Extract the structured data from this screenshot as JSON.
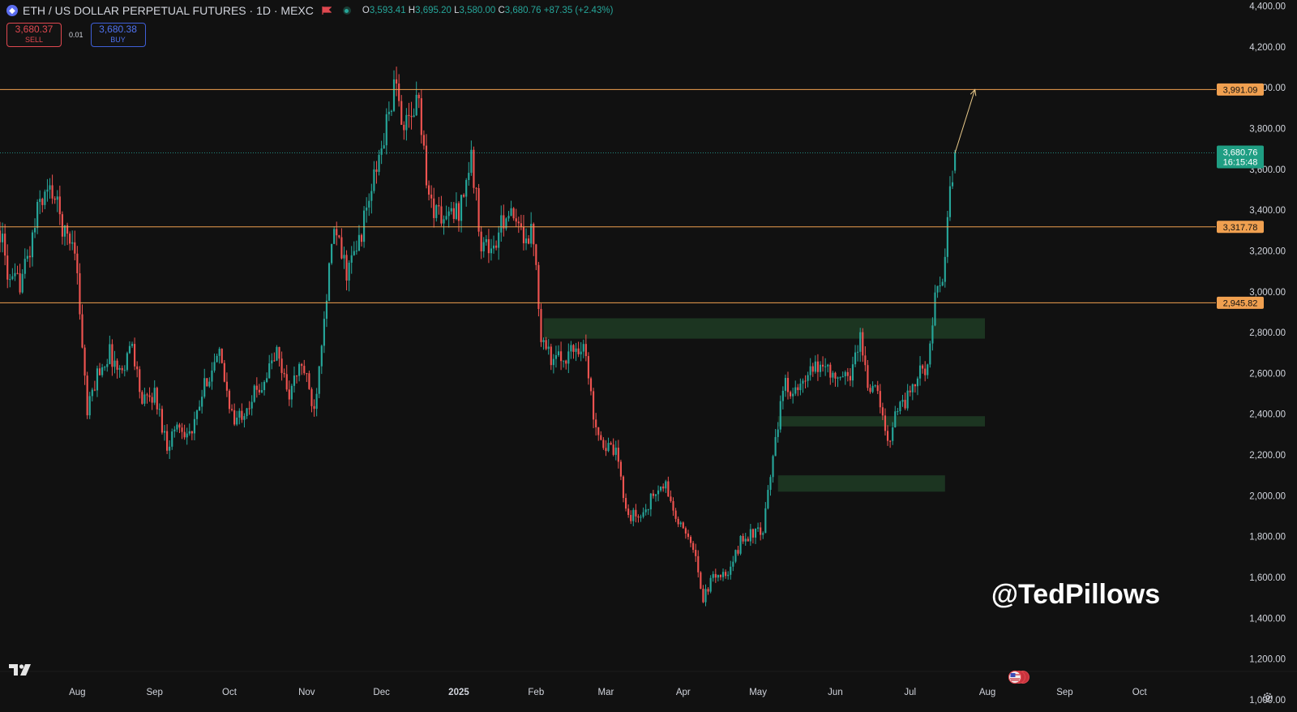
{
  "header": {
    "title": "ETH / US DOLLAR PERPETUAL FUTURES · 1D · MEXC",
    "coin_glyph": "◆",
    "ohlc": {
      "o_label": "O",
      "o": "3,593.41",
      "h_label": "H",
      "h": "3,695.20",
      "l_label": "L",
      "l": "3,580.00",
      "c_label": "C",
      "c": "3,680.76",
      "change": "+87.35 (+2.43%)"
    }
  },
  "trade": {
    "sell_price": "3,680.37",
    "sell_label": "SELL",
    "spread": "0.01",
    "buy_price": "3,680.38",
    "buy_label": "BUY"
  },
  "watermark": "@TedPillows",
  "colors": {
    "background": "#111111",
    "up": "#26a69a",
    "down": "#ef5350",
    "level": "#f0a050",
    "zone": "#1e3a24",
    "arrow": "#e8c98a",
    "current_price_tag": "#1f9e83"
  },
  "icons": [
    "ethereum-coin-icon",
    "flag-icon",
    "market-status-icon",
    "tradingview-logo-icon",
    "us-flag-icon",
    "settings-gear-icon"
  ],
  "chart_data": {
    "type": "candlestick",
    "interval": "1D",
    "x_axis_labels": [
      "Aug",
      "Sep",
      "Oct",
      "Nov",
      "Dec",
      "2025",
      "Feb",
      "Mar",
      "Apr",
      "May",
      "Jun",
      "Jul",
      "Aug",
      "Sep",
      "Oct"
    ],
    "x_range": [
      "2024-07-01",
      "2025-10-31"
    ],
    "y_ticks": [
      "4,400.00",
      "4,200.00",
      "4,000.00",
      "3,800.00",
      "3,600.00",
      "3,400.00",
      "3,200.00",
      "3,000.00",
      "2,800.00",
      "2,600.00",
      "2,400.00",
      "2,200.00",
      "2,000.00",
      "1,800.00",
      "1,600.00",
      "1,400.00",
      "1,200.00",
      "1,000.00"
    ],
    "ylim": [
      940,
      4430
    ],
    "horizontal_levels": [
      {
        "value": 3991.09,
        "label": "3,991.09"
      },
      {
        "value": 3317.78,
        "label": "3,317.78"
      },
      {
        "value": 2945.82,
        "label": "2,945.82"
      }
    ],
    "current_price": {
      "value": 3680.76,
      "label": "3,680.76",
      "countdown": "16:15:48"
    },
    "zones": [
      {
        "from": "2025-02-04",
        "to": "2025-07-31",
        "low": 2770,
        "high": 2870
      },
      {
        "from": "2025-05-09",
        "to": "2025-07-31",
        "low": 2340,
        "high": 2390
      },
      {
        "from": "2025-05-09",
        "to": "2025-07-15",
        "low": 2020,
        "high": 2100
      }
    ],
    "arrow": {
      "from": {
        "date": "2025-07-19",
        "value": 3680
      },
      "to": {
        "date": "2025-07-27",
        "value": 3991
      }
    },
    "candle_path": [
      [
        "2024-07-01",
        3300
      ],
      [
        "2024-07-05",
        3030
      ],
      [
        "2024-07-09",
        3050
      ],
      [
        "2024-07-13",
        3200
      ],
      [
        "2024-07-17",
        3450
      ],
      [
        "2024-07-22",
        3500
      ],
      [
        "2024-07-27",
        3280
      ],
      [
        "2024-07-31",
        3240
      ],
      [
        "2024-08-05",
        2400
      ],
      [
        "2024-08-09",
        2600
      ],
      [
        "2024-08-14",
        2700
      ],
      [
        "2024-08-18",
        2600
      ],
      [
        "2024-08-23",
        2750
      ],
      [
        "2024-08-27",
        2450
      ],
      [
        "2024-09-01",
        2500
      ],
      [
        "2024-09-06",
        2250
      ],
      [
        "2024-09-10",
        2350
      ],
      [
        "2024-09-16",
        2300
      ],
      [
        "2024-09-22",
        2580
      ],
      [
        "2024-09-27",
        2680
      ],
      [
        "2024-10-03",
        2350
      ],
      [
        "2024-10-08",
        2450
      ],
      [
        "2024-10-14",
        2550
      ],
      [
        "2024-10-20",
        2700
      ],
      [
        "2024-10-25",
        2500
      ],
      [
        "2024-10-30",
        2650
      ],
      [
        "2024-11-04",
        2420
      ],
      [
        "2024-11-08",
        2900
      ],
      [
        "2024-11-12",
        3300
      ],
      [
        "2024-11-17",
        3100
      ],
      [
        "2024-11-21",
        3200
      ],
      [
        "2024-11-26",
        3450
      ],
      [
        "2024-12-01",
        3700
      ],
      [
        "2024-12-06",
        4000
      ],
      [
        "2024-12-11",
        3800
      ],
      [
        "2024-12-16",
        3950
      ],
      [
        "2024-12-20",
        3450
      ],
      [
        "2024-12-26",
        3350
      ],
      [
        "2025-01-01",
        3400
      ],
      [
        "2025-01-06",
        3650
      ],
      [
        "2025-01-10",
        3250
      ],
      [
        "2025-01-15",
        3200
      ],
      [
        "2025-01-20",
        3400
      ],
      [
        "2025-01-25",
        3300
      ],
      [
        "2025-01-31",
        3280
      ],
      [
        "2025-02-03",
        2800
      ],
      [
        "2025-02-08",
        2650
      ],
      [
        "2025-02-14",
        2700
      ],
      [
        "2025-02-20",
        2750
      ],
      [
        "2025-02-24",
        2400
      ],
      [
        "2025-02-28",
        2250
      ],
      [
        "2025-03-05",
        2200
      ],
      [
        "2025-03-10",
        1900
      ],
      [
        "2025-03-15",
        1900
      ],
      [
        "2025-03-20",
        2000
      ],
      [
        "2025-03-25",
        2050
      ],
      [
        "2025-03-30",
        1850
      ],
      [
        "2025-04-04",
        1800
      ],
      [
        "2025-04-09",
        1500
      ],
      [
        "2025-04-14",
        1620
      ],
      [
        "2025-04-19",
        1600
      ],
      [
        "2025-04-24",
        1780
      ],
      [
        "2025-04-29",
        1820
      ],
      [
        "2025-05-03",
        1810
      ],
      [
        "2025-05-08",
        2300
      ],
      [
        "2025-05-12",
        2550
      ],
      [
        "2025-05-17",
        2500
      ],
      [
        "2025-05-22",
        2600
      ],
      [
        "2025-05-28",
        2650
      ],
      [
        "2025-06-02",
        2550
      ],
      [
        "2025-06-07",
        2600
      ],
      [
        "2025-06-11",
        2780
      ],
      [
        "2025-06-14",
        2550
      ],
      [
        "2025-06-18",
        2500
      ],
      [
        "2025-06-22",
        2250
      ],
      [
        "2025-06-25",
        2420
      ],
      [
        "2025-06-30",
        2480
      ],
      [
        "2025-07-04",
        2580
      ],
      [
        "2025-07-08",
        2650
      ],
      [
        "2025-07-11",
        2950
      ],
      [
        "2025-07-14",
        3050
      ],
      [
        "2025-07-16",
        3350
      ],
      [
        "2025-07-19",
        3680
      ]
    ]
  }
}
